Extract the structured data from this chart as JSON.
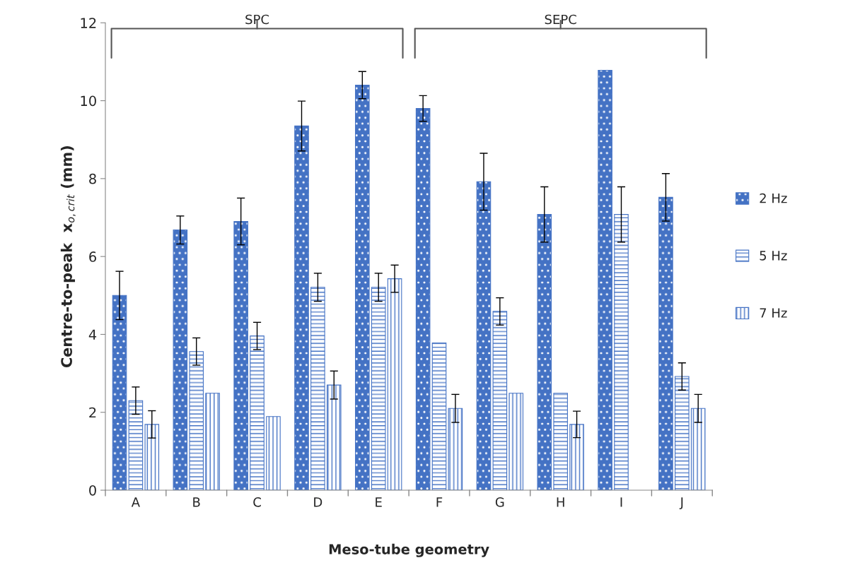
{
  "chart_data": {
    "type": "bar",
    "xlabel": "Meso-tube geometry",
    "ylabel": "Centre-to-peak  x$_{o,crit}$ (mm)",
    "categories": [
      "A",
      "B",
      "C",
      "D",
      "E",
      "F",
      "G",
      "H",
      "I",
      "J"
    ],
    "series": [
      {
        "name": "2 Hz",
        "color": "#4472c4",
        "values": [
          5.0,
          6.68,
          6.9,
          9.35,
          10.4,
          9.8,
          7.92,
          7.08,
          10.78,
          7.52
        ],
        "errors": [
          0.62,
          0.36,
          0.6,
          0.64,
          0.35,
          0.33,
          0.73,
          0.71,
          null,
          0.61
        ]
      },
      {
        "name": "5 Hz",
        "color": "#4472c4",
        "values": [
          2.3,
          3.56,
          3.96,
          5.21,
          5.21,
          3.78,
          4.59,
          2.49,
          7.08,
          2.92
        ],
        "errors": [
          0.35,
          0.35,
          0.35,
          0.36,
          0.36,
          null,
          0.35,
          null,
          0.71,
          0.35
        ]
      },
      {
        "name": "7 Hz",
        "color": "#4472c4",
        "values": [
          1.69,
          2.49,
          1.89,
          2.7,
          5.43,
          2.1,
          2.49,
          1.69,
          null,
          2.1
        ],
        "errors": [
          0.35,
          null,
          null,
          0.36,
          0.35,
          0.36,
          null,
          0.34,
          null,
          0.36
        ]
      }
    ],
    "ylim": [
      0,
      12
    ],
    "yticks": [
      0,
      2,
      4,
      6,
      8,
      10,
      12
    ],
    "grid": false,
    "legend": "right",
    "annotations": [
      "SPC",
      "SEPC"
    ]
  }
}
